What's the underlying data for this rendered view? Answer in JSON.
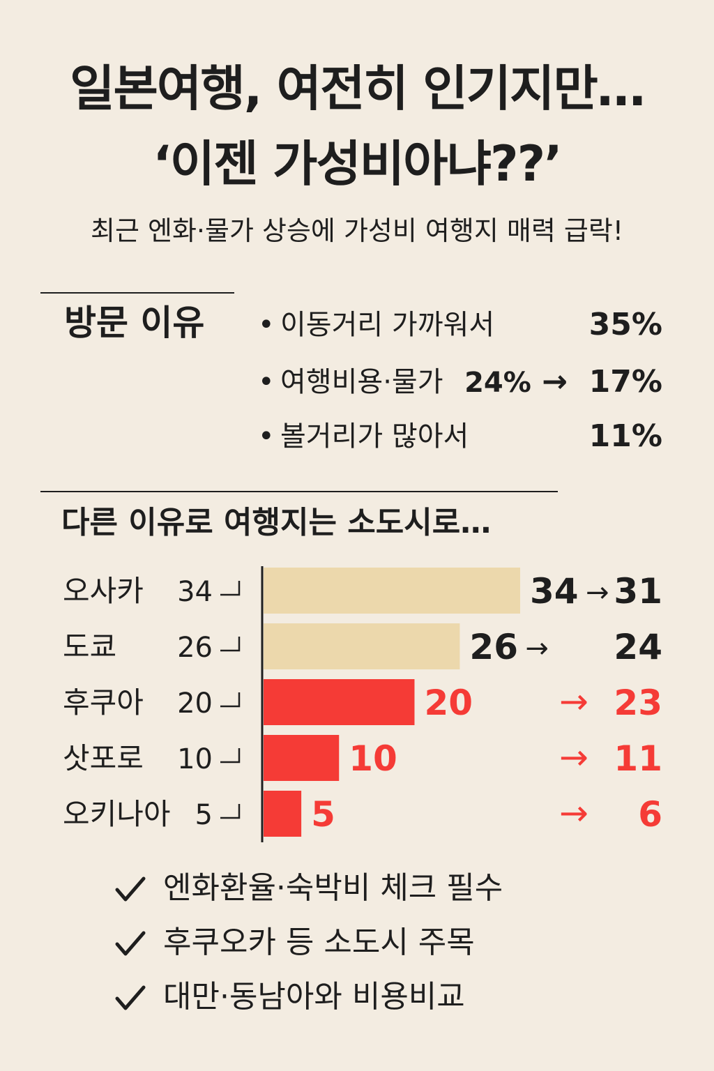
{
  "header": {
    "title_line1": "일본여행, 여전히 인기지만…",
    "title_line2": "‘이젠 가성비아냐??’",
    "subtitle": "최근 엔화·물가 상승에 가성비 여행지 매력 급락!"
  },
  "reasons": {
    "heading": "방문 이유",
    "bullet": "•",
    "items": [
      {
        "label": "이동거리 가까워서",
        "from": "",
        "value": "35%"
      },
      {
        "label": "여행비용·물가",
        "from": "24%",
        "arrow": "→",
        "value": "17%"
      },
      {
        "label": "볼거리가 많아서",
        "from": "",
        "value": "11%"
      }
    ]
  },
  "section2": {
    "heading": "다른 이유로 여행지는 소도시로…"
  },
  "colors": {
    "highlight": "#f53b36",
    "beige": "#ecd8ac",
    "text": "#1e1e1e",
    "background": "#f3ece1"
  },
  "chart_data": {
    "type": "bar",
    "orientation": "horizontal",
    "categories": [
      "오사카",
      "도쿄",
      "후쿠아",
      "삿포로",
      "오키나아"
    ],
    "series": [
      {
        "values": [
          34,
          26,
          20,
          10,
          5
        ]
      },
      {
        "values": [
          31,
          24,
          23,
          11,
          6
        ]
      }
    ],
    "value_labels": [
      "34",
      "26",
      "20",
      "10",
      "5"
    ],
    "after_labels": [
      "31",
      "24",
      "23",
      "11",
      "6"
    ],
    "arrow": "→",
    "highlighted": [
      false,
      false,
      true,
      true,
      true
    ],
    "xlim": [
      0,
      34
    ]
  },
  "checklist": {
    "icon": "check-icon",
    "items": [
      "엔화환율·숙박비 체크 필수",
      "후쿠오카 등 소도시 주목",
      "대만·동남아와 비용비교"
    ]
  }
}
